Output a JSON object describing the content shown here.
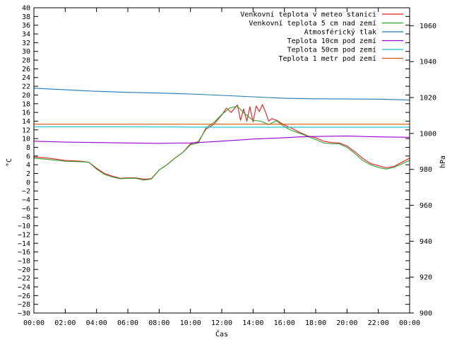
{
  "chart_data": {
    "type": "line",
    "xlabel": "Čas",
    "ylabel_left": "°C",
    "ylabel_right": "hPa",
    "x_ticks": [
      "00:00",
      "02:00",
      "04:00",
      "06:00",
      "08:00",
      "10:00",
      "12:00",
      "14:00",
      "16:00",
      "18:00",
      "20:00",
      "22:00",
      "00:00"
    ],
    "xlim_hours": [
      0,
      24
    ],
    "ylim_left": [
      -30,
      40
    ],
    "ylim_right": [
      900,
      1070
    ],
    "left_ticks": [
      40,
      38,
      36,
      34,
      32,
      30,
      28,
      26,
      24,
      22,
      20,
      18,
      16,
      14,
      12,
      10,
      8,
      6,
      4,
      2,
      0,
      -2,
      -4,
      -6,
      -8,
      -10,
      -12,
      -14,
      -16,
      -18,
      -20,
      -22,
      -24,
      -26,
      -28,
      -30
    ],
    "right_ticks": [
      1060,
      1040,
      1020,
      1000,
      980,
      960,
      940,
      920,
      900
    ],
    "legend_position": "top-right",
    "grid": false,
    "series": [
      {
        "name": "Venkovní teplota v meteo stanici",
        "color": "#e41a1c",
        "axis": "left",
        "x": [
          0,
          1,
          2,
          3,
          3.5,
          4,
          4.5,
          5,
          5.5,
          6,
          6.5,
          7,
          7.5,
          8,
          8.5,
          9,
          9.5,
          10,
          10.5,
          11,
          11.5,
          12,
          12.3,
          12.6,
          13,
          13.2,
          13.4,
          13.6,
          13.8,
          14,
          14.2,
          14.4,
          14.6,
          14.8,
          15,
          15.2,
          15.5,
          16,
          16.5,
          17,
          17.5,
          18,
          18.5,
          19,
          19.5,
          20,
          20.5,
          21,
          21.5,
          22,
          22.5,
          23,
          24
        ],
        "y": [
          5.8,
          5.5,
          5.0,
          4.8,
          4.6,
          3.2,
          2.0,
          1.4,
          0.9,
          1.0,
          1.0,
          0.7,
          0.8,
          2.8,
          4.0,
          5.5,
          6.8,
          8.8,
          9.3,
          12.2,
          13.3,
          15.4,
          17.0,
          16.0,
          17.7,
          14.2,
          16.8,
          14.0,
          17.3,
          13.8,
          17.5,
          16.2,
          17.8,
          16.0,
          14.0,
          14.6,
          14.2,
          13.1,
          12.3,
          11.4,
          10.6,
          10.2,
          9.4,
          9.1,
          9.0,
          8.3,
          7.0,
          5.5,
          4.3,
          3.8,
          3.3,
          3.6,
          5.5
        ]
      },
      {
        "name": "Venkovní teplota 5 cm nad zemí",
        "color": "#2ca02c",
        "axis": "left",
        "x": [
          0,
          1,
          2,
          3,
          3.5,
          4,
          4.5,
          5,
          5.5,
          6,
          6.5,
          7,
          7.5,
          8,
          8.5,
          9,
          9.5,
          10,
          10.5,
          11,
          11.5,
          12,
          12.5,
          13,
          13.5,
          14,
          14.5,
          15,
          15.5,
          16,
          16.5,
          17,
          17.5,
          18,
          18.5,
          19,
          19.5,
          20,
          20.5,
          21,
          21.5,
          22,
          22.5,
          23,
          24
        ],
        "y": [
          5.5,
          5.2,
          4.8,
          4.7,
          4.6,
          3.0,
          1.8,
          1.2,
          0.8,
          0.9,
          0.9,
          0.5,
          0.7,
          2.8,
          4.0,
          5.5,
          6.8,
          8.6,
          9.0,
          12.5,
          13.7,
          15.5,
          17.0,
          17.4,
          15.6,
          14.2,
          14.0,
          13.2,
          14.1,
          12.7,
          11.8,
          11.2,
          10.5,
          9.8,
          9.0,
          8.8,
          8.8,
          8.0,
          6.6,
          5.0,
          4.0,
          3.4,
          3.0,
          3.4,
          5.0
        ]
      },
      {
        "name": "Atmosférický tlak",
        "color": "#1f77b4",
        "axis": "right",
        "x": [
          0,
          2,
          4,
          6,
          8,
          10,
          12,
          14,
          16,
          18,
          20,
          22,
          24
        ],
        "y": [
          1025.2,
          1024.3,
          1023.5,
          1022.9,
          1022.5,
          1022.0,
          1021.2,
          1020.4,
          1019.6,
          1019.3,
          1019.2,
          1019.1,
          1018.6
        ]
      },
      {
        "name": "Teplota 10cm pod zemí",
        "color": "#9400d3",
        "axis": "left",
        "x": [
          0,
          2,
          4,
          6,
          8,
          10,
          12,
          14,
          16,
          17,
          18,
          20,
          22,
          24
        ],
        "y": [
          9.4,
          9.2,
          9.1,
          9.0,
          8.9,
          9.0,
          9.4,
          9.9,
          10.2,
          10.4,
          10.5,
          10.6,
          10.4,
          10.3
        ]
      },
      {
        "name": "Teplota 50cm pod zemí",
        "color": "#17becf",
        "axis": "left",
        "x": [
          0,
          6,
          12,
          18,
          24
        ],
        "y": [
          12.7,
          12.7,
          12.6,
          12.6,
          12.6
        ]
      },
      {
        "name": "Teplota 1 metr pod zemí",
        "color": "#d45500",
        "axis": "left",
        "x": [
          0,
          6,
          12,
          18,
          24
        ],
        "y": [
          13.3,
          13.3,
          13.3,
          13.3,
          13.3
        ]
      }
    ]
  }
}
